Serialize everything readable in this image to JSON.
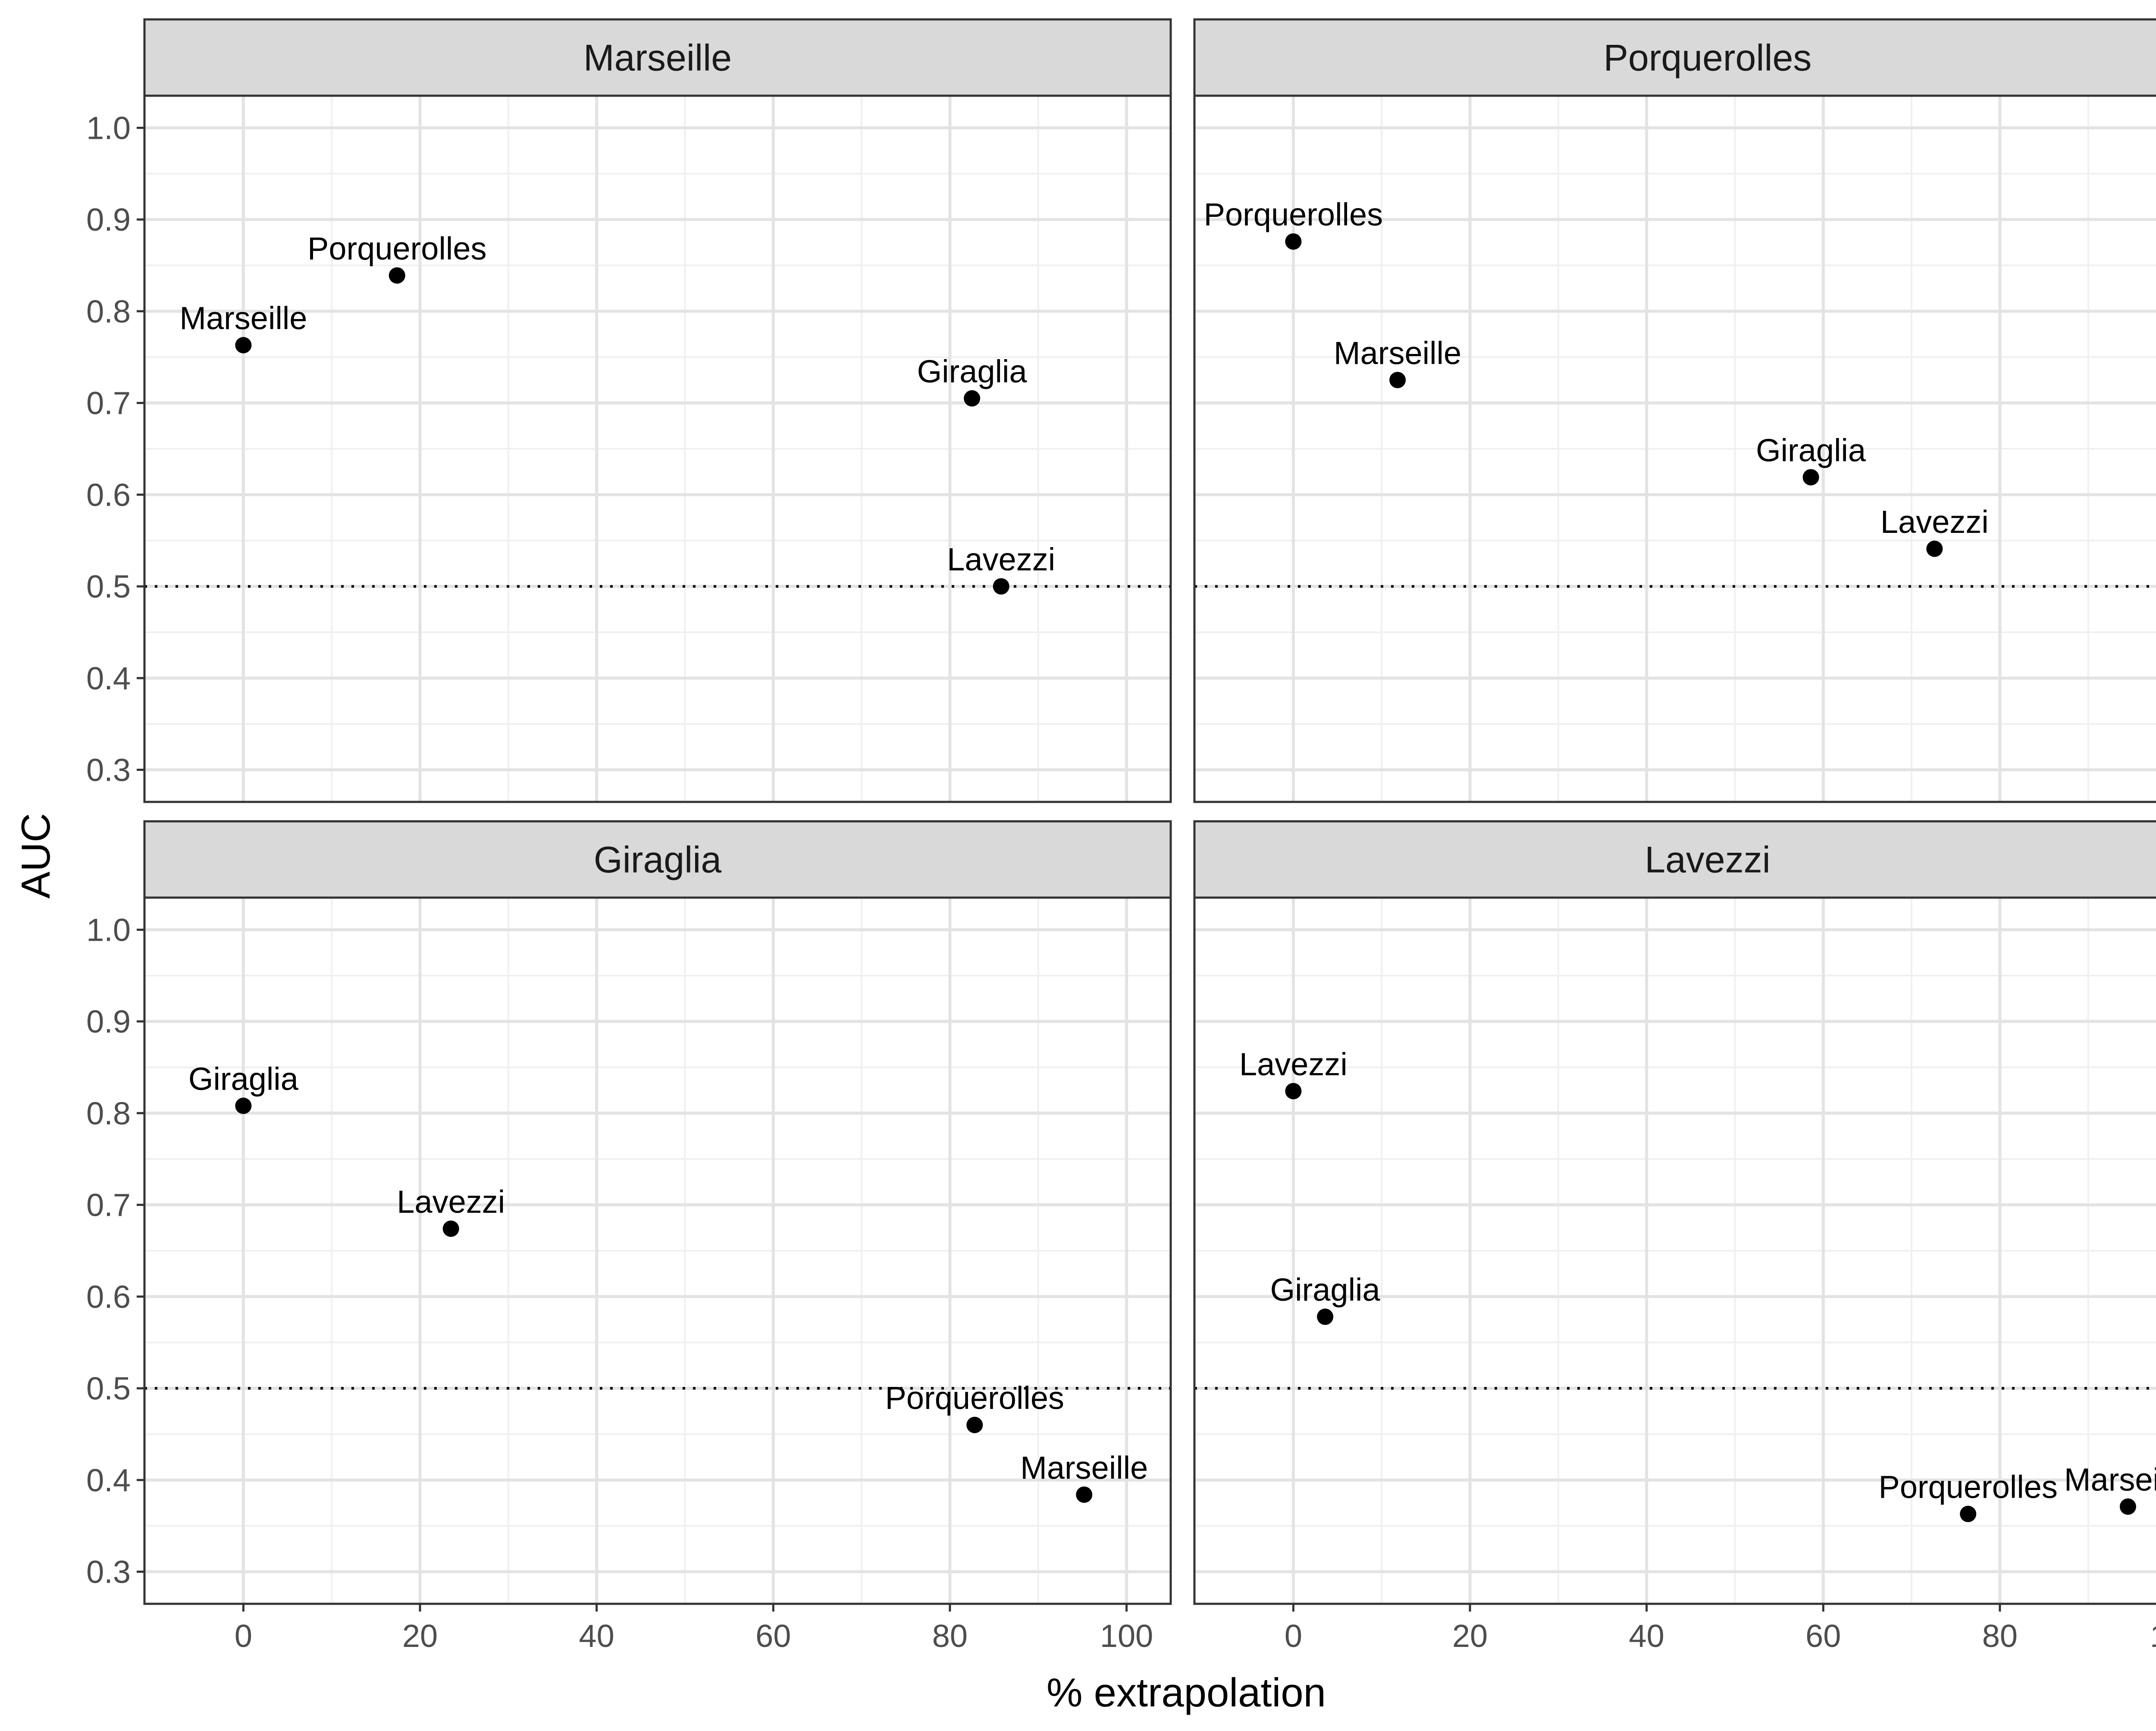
{
  "chart_data": {
    "type": "scatter",
    "xlabel": "% extrapolation",
    "ylabel": "AUC",
    "xlim": [
      -11.2,
      105
    ],
    "ylim": [
      0.265,
      1.035
    ],
    "x_ticks": [
      0,
      20,
      40,
      60,
      80,
      100
    ],
    "y_ticks": [
      0.3,
      0.4,
      0.5,
      0.6,
      0.7,
      0.8,
      0.9,
      1.0
    ],
    "reference_line": 0.5,
    "grid": true,
    "panels": [
      {
        "title": "Marseille",
        "points": [
          {
            "label": "Marseille",
            "x": 0,
            "y": 0.763
          },
          {
            "label": "Porquerolles",
            "x": 17.4,
            "y": 0.839
          },
          {
            "label": "Giraglia",
            "x": 82.5,
            "y": 0.705
          },
          {
            "label": "Lavezzi",
            "x": 85.8,
            "y": 0.5
          }
        ]
      },
      {
        "title": "Porquerolles",
        "points": [
          {
            "label": "Porquerolles",
            "x": 0,
            "y": 0.876
          },
          {
            "label": "Marseille",
            "x": 11.8,
            "y": 0.725
          },
          {
            "label": "Giraglia",
            "x": 58.6,
            "y": 0.619
          },
          {
            "label": "Lavezzi",
            "x": 72.6,
            "y": 0.541
          }
        ]
      },
      {
        "title": "Giraglia",
        "points": [
          {
            "label": "Giraglia",
            "x": 0,
            "y": 0.808
          },
          {
            "label": "Lavezzi",
            "x": 23.5,
            "y": 0.674
          },
          {
            "label": "Porquerolles",
            "x": 82.8,
            "y": 0.46
          },
          {
            "label": "Marseille",
            "x": 95.2,
            "y": 0.384
          }
        ]
      },
      {
        "title": "Lavezzi",
        "points": [
          {
            "label": "Lavezzi",
            "x": 0,
            "y": 0.824
          },
          {
            "label": "Giraglia",
            "x": 3.6,
            "y": 0.578
          },
          {
            "label": "Porquerolles",
            "x": 76.4,
            "y": 0.363
          },
          {
            "label": "Marseille",
            "x": 94.5,
            "y": 0.371
          }
        ]
      }
    ]
  }
}
